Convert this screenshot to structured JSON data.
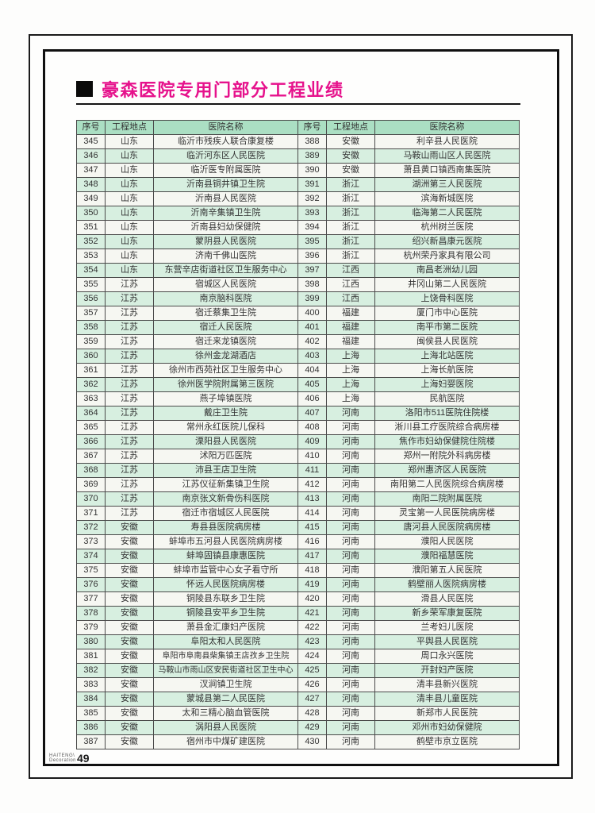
{
  "page": {
    "title": "豪森医院专用门部分工程业绩"
  },
  "colors": {
    "title_magenta": "#e6128c",
    "header_green": "#abdfc3",
    "row_green": "#d7efe0",
    "row_white": "#f6f7f2",
    "border": "#4a4a4a"
  },
  "table": {
    "headers": [
      "序号",
      "工程地点",
      "医院名称"
    ],
    "left_rows": [
      [
        "345",
        "山东",
        "临沂市残疾人联合康复楼"
      ],
      [
        "346",
        "山东",
        "临沂河东区人民医院"
      ],
      [
        "347",
        "山东",
        "临沂医专附属医院"
      ],
      [
        "348",
        "山东",
        "沂南县铜井镇卫生院"
      ],
      [
        "349",
        "山东",
        "沂南县人民医院"
      ],
      [
        "350",
        "山东",
        "沂南辛集镇卫生院"
      ],
      [
        "351",
        "山东",
        "沂南县妇幼保健院"
      ],
      [
        "352",
        "山东",
        "蒙阴县人民医院"
      ],
      [
        "353",
        "山东",
        "济南千佛山医院"
      ],
      [
        "354",
        "山东",
        "东营辛店街道社区卫生服务中心"
      ],
      [
        "355",
        "江苏",
        "宿城区人民医院"
      ],
      [
        "356",
        "江苏",
        "南京脑科医院"
      ],
      [
        "357",
        "江苏",
        "宿迁蔡集卫生院"
      ],
      [
        "358",
        "江苏",
        "宿迁人民医院"
      ],
      [
        "359",
        "江苏",
        "宿迁来龙镇医院"
      ],
      [
        "360",
        "江苏",
        "徐州金龙湖酒店"
      ],
      [
        "361",
        "江苏",
        "徐州市西苑社区卫生服务中心"
      ],
      [
        "362",
        "江苏",
        "徐州医学院附属第三医院"
      ],
      [
        "363",
        "江苏",
        "燕子埠镇医院"
      ],
      [
        "364",
        "江苏",
        "戴庄卫生院"
      ],
      [
        "365",
        "江苏",
        "常州永红医院儿保科"
      ],
      [
        "366",
        "江苏",
        "溧阳县人民医院"
      ],
      [
        "367",
        "江苏",
        "沭阳万匹医院"
      ],
      [
        "368",
        "江苏",
        "沛县王店卫生院"
      ],
      [
        "369",
        "江苏",
        "江苏仪征新集镇卫生院"
      ],
      [
        "370",
        "江苏",
        "南京张文新骨伤科医院"
      ],
      [
        "371",
        "江苏",
        "宿迁市宿城区人民医院"
      ],
      [
        "372",
        "安徽",
        "寿县县医院病房楼"
      ],
      [
        "373",
        "安徽",
        "蚌埠市五河县人民医院病房楼"
      ],
      [
        "374",
        "安徽",
        "蚌埠固镇县康惠医院"
      ],
      [
        "375",
        "安徽",
        "蚌埠市监管中心女子看守所"
      ],
      [
        "376",
        "安徽",
        "怀远人民医院病房楼"
      ],
      [
        "377",
        "安徽",
        "铜陵县东联乡卫生院"
      ],
      [
        "378",
        "安徽",
        "铜陵县安平乡卫生院"
      ],
      [
        "379",
        "安徽",
        "萧县金汇康妇产医院"
      ],
      [
        "380",
        "安徽",
        "阜阳太和人民医院"
      ],
      [
        "381",
        "安徽",
        "阜阳市阜南县柴集镇王店孜乡卫生院"
      ],
      [
        "382",
        "安徽",
        "马鞍山市雨山区安民街道社区卫生中心"
      ],
      [
        "383",
        "安徽",
        "汊涧镇卫生院"
      ],
      [
        "384",
        "安徽",
        "蒙城县第二人民医院"
      ],
      [
        "385",
        "安徽",
        "太和三精心脑血管医院"
      ],
      [
        "386",
        "安徽",
        "涡阳县人民医院"
      ],
      [
        "387",
        "安徽",
        "宿州市中煤矿建医院"
      ]
    ],
    "right_rows": [
      [
        "388",
        "安徽",
        "利辛县人民医院"
      ],
      [
        "389",
        "安徽",
        "马鞍山雨山区人民医院"
      ],
      [
        "390",
        "安徽",
        "萧县黄口镇西南集医院"
      ],
      [
        "391",
        "浙江",
        "湖洲第三人民医院"
      ],
      [
        "392",
        "浙江",
        "滨海新城医院"
      ],
      [
        "393",
        "浙江",
        "临海第二人民医院"
      ],
      [
        "394",
        "浙江",
        "杭州树兰医院"
      ],
      [
        "395",
        "浙江",
        "绍兴新昌康元医院"
      ],
      [
        "396",
        "浙江",
        "杭州荣丹家具有限公司"
      ],
      [
        "397",
        "江西",
        "南昌老洲幼儿园"
      ],
      [
        "398",
        "江西",
        "井冈山第二人民医院"
      ],
      [
        "399",
        "江西",
        "上饶骨科医院"
      ],
      [
        "400",
        "福建",
        "厦门市中心医院"
      ],
      [
        "401",
        "福建",
        "南平市第二医院"
      ],
      [
        "402",
        "福建",
        "闽侯县人民医院"
      ],
      [
        "403",
        "上海",
        "上海北站医院"
      ],
      [
        "404",
        "上海",
        "上海长航医院"
      ],
      [
        "405",
        "上海",
        "上海妇婴医院"
      ],
      [
        "406",
        "上海",
        "民航医院"
      ],
      [
        "407",
        "河南",
        "洛阳市511医院住院楼"
      ],
      [
        "408",
        "河南",
        "淅川县工疗医院综合病房楼"
      ],
      [
        "409",
        "河南",
        "焦作市妇幼保健院住院楼"
      ],
      [
        "410",
        "河南",
        "郑州一附院外科病房楼"
      ],
      [
        "411",
        "河南",
        "郑州惠济区人民医院"
      ],
      [
        "412",
        "河南",
        "南阳第二人民医院综合病房楼"
      ],
      [
        "413",
        "河南",
        "南阳二院附属医院"
      ],
      [
        "414",
        "河南",
        "灵宝第一人民医院病房楼"
      ],
      [
        "415",
        "河南",
        "唐河县人民医院病房楼"
      ],
      [
        "416",
        "河南",
        "濮阳人民医院"
      ],
      [
        "417",
        "河南",
        "濮阳福慧医院"
      ],
      [
        "418",
        "河南",
        "濮阳第五人民医院"
      ],
      [
        "419",
        "河南",
        "鹤壁丽人医院病房楼"
      ],
      [
        "420",
        "河南",
        "滑县人民医院"
      ],
      [
        "421",
        "河南",
        "新乡荣军康复医院"
      ],
      [
        "422",
        "河南",
        "兰考妇儿医院"
      ],
      [
        "423",
        "河南",
        "平舆县人民医院"
      ],
      [
        "424",
        "河南",
        "周口永兴医院"
      ],
      [
        "425",
        "河南",
        "开封妇产医院"
      ],
      [
        "426",
        "河南",
        "清丰县新兴医院"
      ],
      [
        "427",
        "河南",
        "清丰县儿童医院"
      ],
      [
        "428",
        "河南",
        "新郑市人民医院"
      ],
      [
        "429",
        "河南",
        "邓州市妇幼保健院"
      ],
      [
        "430",
        "河南",
        "鹤壁市京立医院"
      ]
    ]
  },
  "footer": {
    "brand_top": "HAITENG\\",
    "brand_bottom": "Decoration",
    "page_number": "49"
  }
}
